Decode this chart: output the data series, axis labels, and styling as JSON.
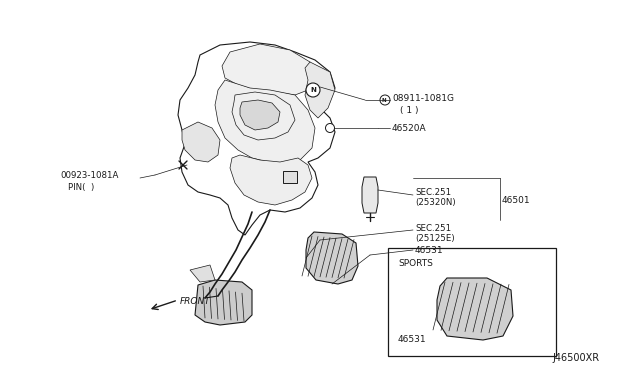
{
  "bg_color": "#ffffff",
  "fig_width": 6.4,
  "fig_height": 3.72,
  "dpi": 100,
  "footer_text": "J46500XR",
  "line_color": "#1a1a1a",
  "text_color": "#1a1a1a",
  "light_gray": "#bbbbbb",
  "mid_gray": "#888888",
  "dark_fill": "#444444",
  "label_08911": "08911-1081G",
  "label_08911_sub": "( 1 )",
  "label_46520A": "46520A",
  "label_46501": "46501",
  "label_sec251_top": "SEC.251",
  "label_25320N": "(25320N)",
  "label_sec251_bot": "SEC.251",
  "label_25125E": "(25125E)",
  "label_46531": "46531",
  "label_00923": "00923-1081A",
  "label_pin": "PIN(",
  "label_front": "FRONT",
  "label_sports": "SPORTS",
  "label_46531s": "46531"
}
